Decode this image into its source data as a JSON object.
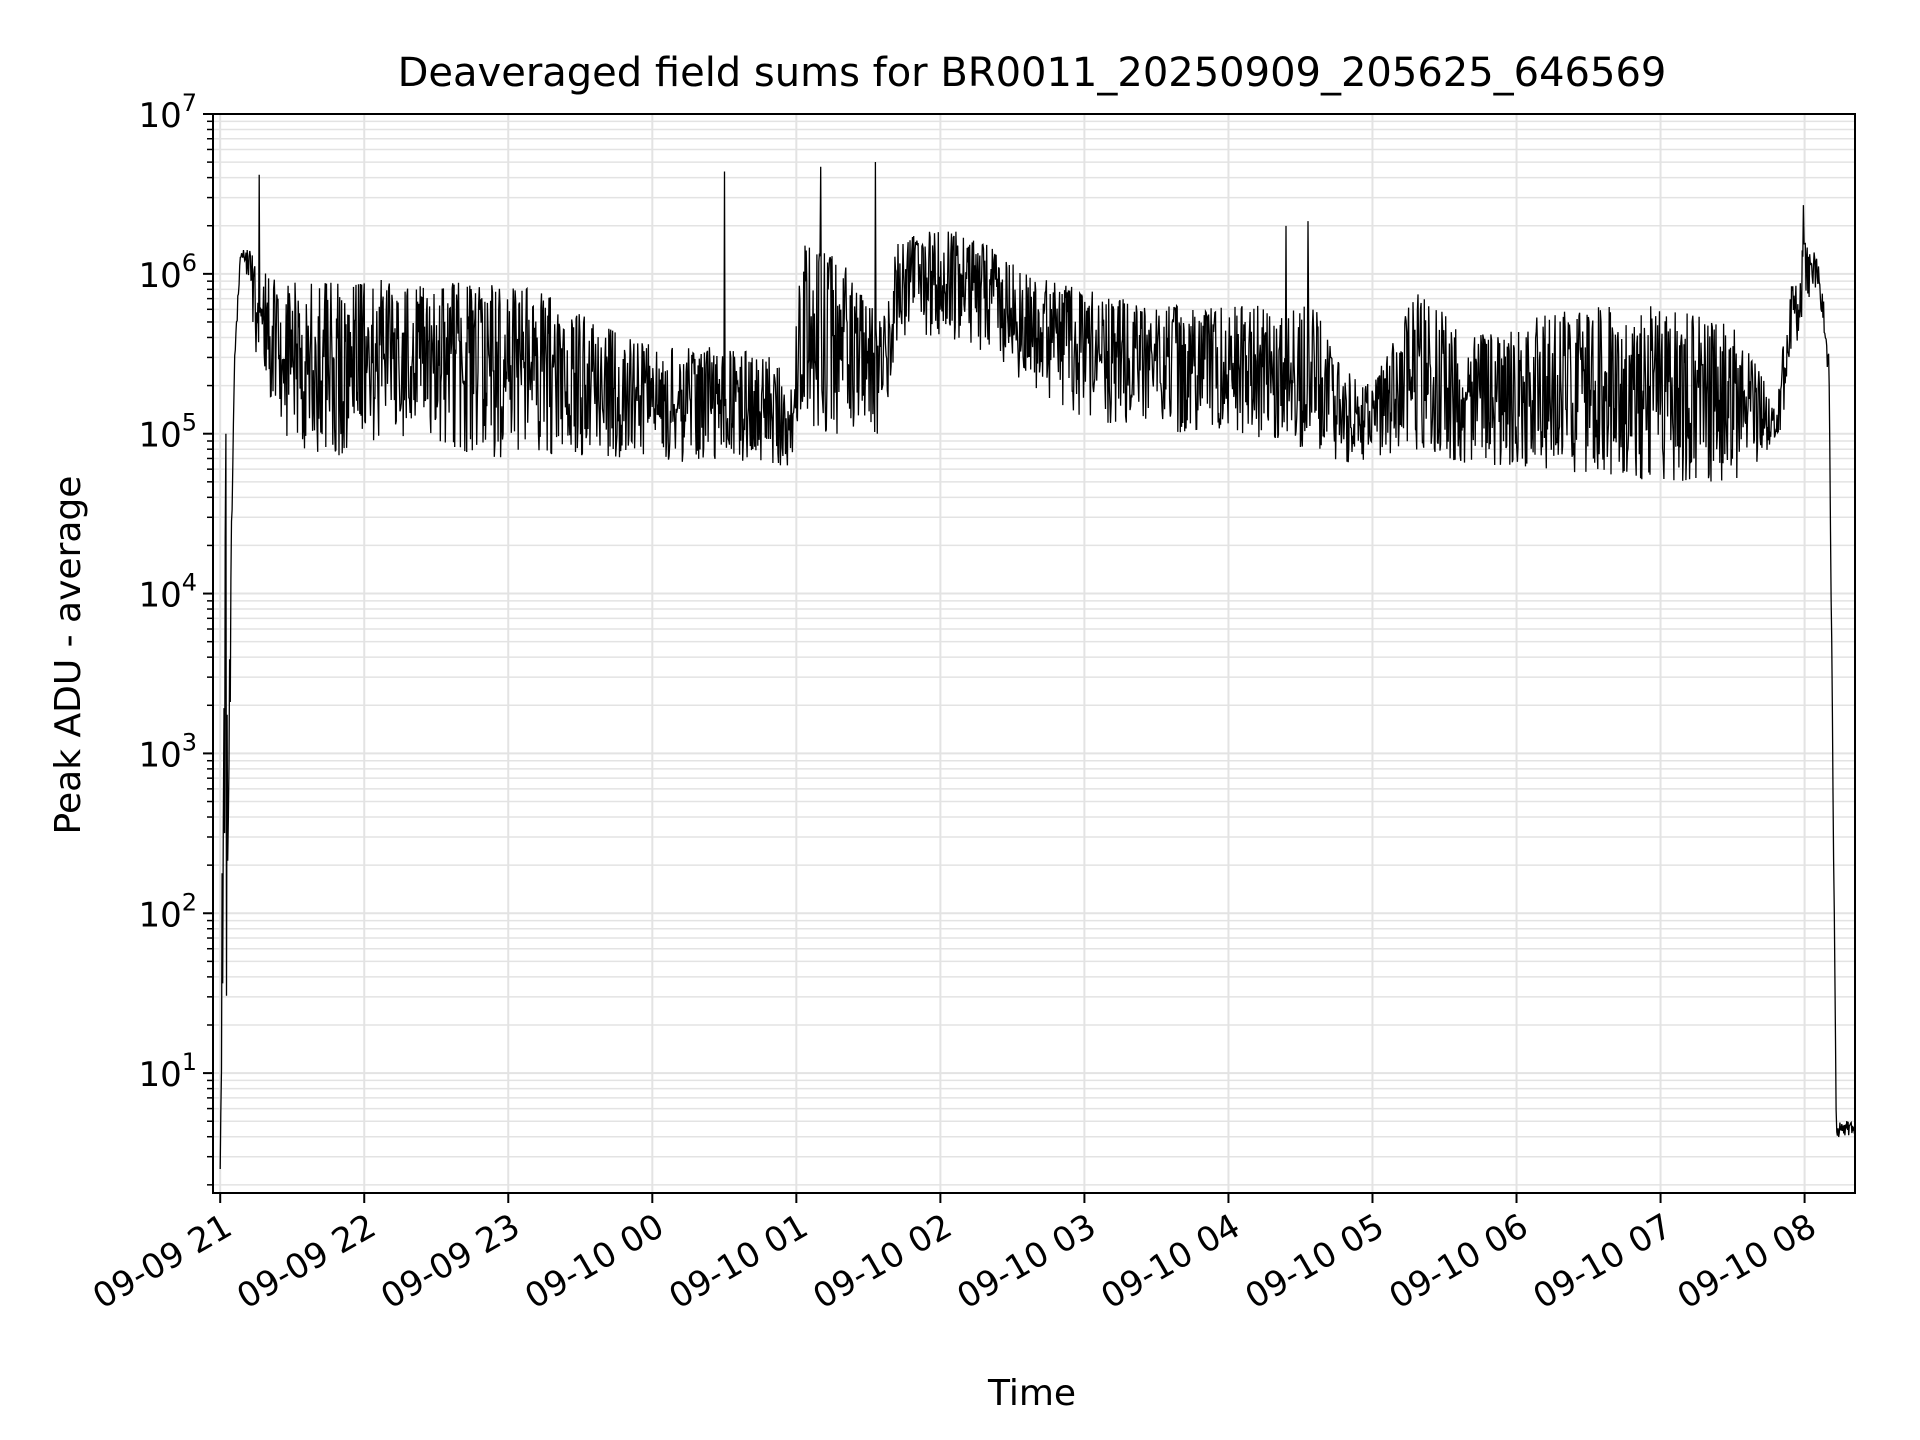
{
  "chart_data": {
    "type": "line",
    "title": "Deaveraged field sums for BR0011_20250909_205625_646569",
    "xlabel": "Time",
    "ylabel": "Peak ADU - average",
    "yscale": "log",
    "ylim_log10": [
      0.25,
      7
    ],
    "xlim_hours_from_2025_09_09_21": [
      -0.05,
      11.35
    ],
    "grid": true,
    "legend": "none",
    "line_color": "#000000",
    "grid_color": "#e3e3e3",
    "x_ticks": [
      {
        "hour": 0,
        "label": "09-09 21"
      },
      {
        "hour": 1,
        "label": "09-09 22"
      },
      {
        "hour": 2,
        "label": "09-09 23"
      },
      {
        "hour": 3,
        "label": "09-10 00"
      },
      {
        "hour": 4,
        "label": "09-10 01"
      },
      {
        "hour": 5,
        "label": "09-10 02"
      },
      {
        "hour": 6,
        "label": "09-10 03"
      },
      {
        "hour": 7,
        "label": "09-10 04"
      },
      {
        "hour": 8,
        "label": "09-10 05"
      },
      {
        "hour": 9,
        "label": "09-10 06"
      },
      {
        "hour": 10,
        "label": "09-10 07"
      },
      {
        "hour": 11,
        "label": "09-10 08"
      }
    ],
    "y_ticks": [
      {
        "exp": 1,
        "base": "10",
        "sup": "1"
      },
      {
        "exp": 2,
        "base": "10",
        "sup": "2"
      },
      {
        "exp": 3,
        "base": "10",
        "sup": "3"
      },
      {
        "exp": 4,
        "base": "10",
        "sup": "4"
      },
      {
        "exp": 5,
        "base": "10",
        "sup": "5"
      },
      {
        "exp": 6,
        "base": "10",
        "sup": "6"
      },
      {
        "exp": 7,
        "base": "10",
        "sup": "7"
      }
    ],
    "series": [
      {
        "description": "approximate envelope of the noisy trace (hours since 09-09 21:00, log10 values)",
        "envelope": [
          [
            0.0,
            0.4,
            0.4
          ],
          [
            0.03,
            0.3,
            5.0
          ],
          [
            0.06,
            2.6,
            3.5
          ],
          [
            0.1,
            5.3,
            5.6
          ],
          [
            0.14,
            6.1,
            6.15
          ],
          [
            0.2,
            5.9,
            6.15
          ],
          [
            0.25,
            5.5,
            6.1
          ],
          [
            0.35,
            5.2,
            6.0
          ],
          [
            0.5,
            4.9,
            5.95
          ],
          [
            0.8,
            4.85,
            5.95
          ],
          [
            1.0,
            4.95,
            6.0
          ],
          [
            1.4,
            5.0,
            5.95
          ],
          [
            1.8,
            4.85,
            5.95
          ],
          [
            2.2,
            4.85,
            5.9
          ],
          [
            2.6,
            4.85,
            5.7
          ],
          [
            3.0,
            4.85,
            5.55
          ],
          [
            3.4,
            4.8,
            5.55
          ],
          [
            3.8,
            4.8,
            5.5
          ],
          [
            3.99,
            4.8,
            5.3
          ],
          [
            4.0,
            5.0,
            6.2
          ],
          [
            4.3,
            5.0,
            6.1
          ],
          [
            4.6,
            5.0,
            5.7
          ],
          [
            4.7,
            5.6,
            6.2
          ],
          [
            5.0,
            5.6,
            6.3
          ],
          [
            5.3,
            5.5,
            6.2
          ],
          [
            5.6,
            5.3,
            6.0
          ],
          [
            6.0,
            5.1,
            5.9
          ],
          [
            6.5,
            5.0,
            5.8
          ],
          [
            7.0,
            5.0,
            5.8
          ],
          [
            7.6,
            4.9,
            5.8
          ],
          [
            7.8,
            4.8,
            5.4
          ],
          [
            8.0,
            4.85,
            5.3
          ],
          [
            8.3,
            4.9,
            5.9
          ],
          [
            8.7,
            4.8,
            5.6
          ],
          [
            9.0,
            4.8,
            5.7
          ],
          [
            9.5,
            4.75,
            5.8
          ],
          [
            10.0,
            4.7,
            5.8
          ],
          [
            10.5,
            4.7,
            5.7
          ],
          [
            10.8,
            4.9,
            5.2
          ],
          [
            10.9,
            5.3,
            5.9
          ],
          [
            11.0,
            5.8,
            6.2
          ],
          [
            11.1,
            5.9,
            6.1
          ],
          [
            11.17,
            5.3,
            5.5
          ],
          [
            11.22,
            0.6,
            0.7
          ],
          [
            11.35,
            0.6,
            0.7
          ]
        ],
        "spikes": [
          {
            "hour": 0.27,
            "log10": 6.62
          },
          {
            "hour": 3.5,
            "log10": 6.64
          },
          {
            "hour": 4.17,
            "log10": 6.67
          },
          {
            "hour": 4.55,
            "log10": 6.7
          },
          {
            "hour": 7.55,
            "log10": 6.33
          },
          {
            "hour": 10.99,
            "log10": 6.43
          },
          {
            "hour": 0.04,
            "log10": 5.0
          },
          {
            "hour": 7.4,
            "log10": 6.3
          }
        ]
      }
    ]
  }
}
